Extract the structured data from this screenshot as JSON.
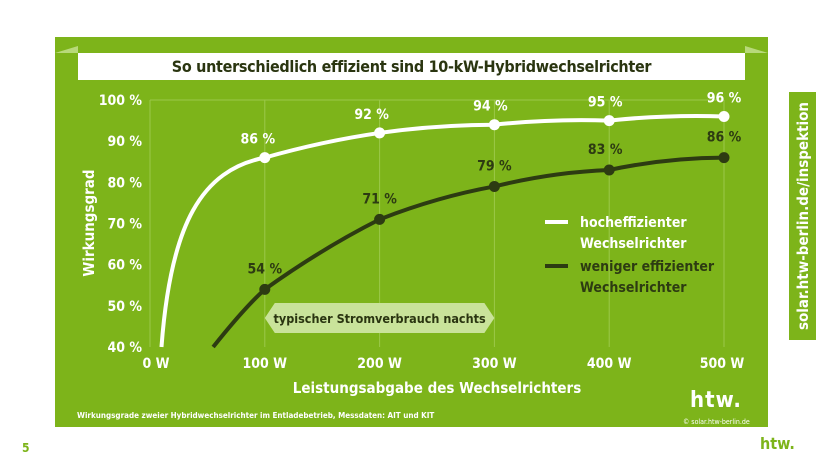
{
  "side_label": "solar.htw-berlin.de/inspektion",
  "page_number": "5",
  "footnote": "Wirkungsgrade zweier Hybridwechselrichter im Entladebetrieb, Messdaten: AIT und KIT",
  "copyright": "© solar.htw-berlin.de",
  "logo": "htw.",
  "colors": {
    "background": "#7db41a",
    "high": "#ffffff",
    "low": "#2d3b12",
    "annotation": "#c9e39a"
  },
  "chart_data": {
    "type": "line",
    "title": "So unterschiedlich effizient sind 10-kW-Hybridwechselrichter",
    "xlabel": "Leistungsabgabe des Wechselrichters",
    "ylabel": "Wirkungsgrad",
    "xlim": [
      0,
      500
    ],
    "ylim": [
      40,
      100
    ],
    "xticks": [
      "0 W",
      "100 W",
      "200 W",
      "300 W",
      "400 W",
      "500 W"
    ],
    "yticks": [
      "100 %",
      "90 %",
      "80 %",
      "70 %",
      "60 %",
      "50 %",
      "40 %"
    ],
    "grid": "vertical",
    "legend": "right",
    "annotation": "typischer Stromverbrauch nachts",
    "annotation_range": [
      100,
      300
    ],
    "series": [
      {
        "name": "hocheffizienter Wechselrichter",
        "color": "#ffffff",
        "curve_start": [
          10,
          40
        ],
        "x": [
          100,
          200,
          300,
          400,
          500
        ],
        "y": [
          86,
          92,
          94,
          95,
          96
        ],
        "labels": [
          "86 %",
          "92 %",
          "94 %",
          "95 %",
          "96 %"
        ]
      },
      {
        "name": "weniger effizienter Wechselrichter",
        "color": "#2d3b12",
        "curve_start": [
          55,
          40
        ],
        "x": [
          100,
          200,
          300,
          400,
          500
        ],
        "y": [
          54,
          71,
          79,
          83,
          86
        ],
        "labels": [
          "54 %",
          "71 %",
          "79 %",
          "83 %",
          "86 %"
        ]
      }
    ]
  }
}
